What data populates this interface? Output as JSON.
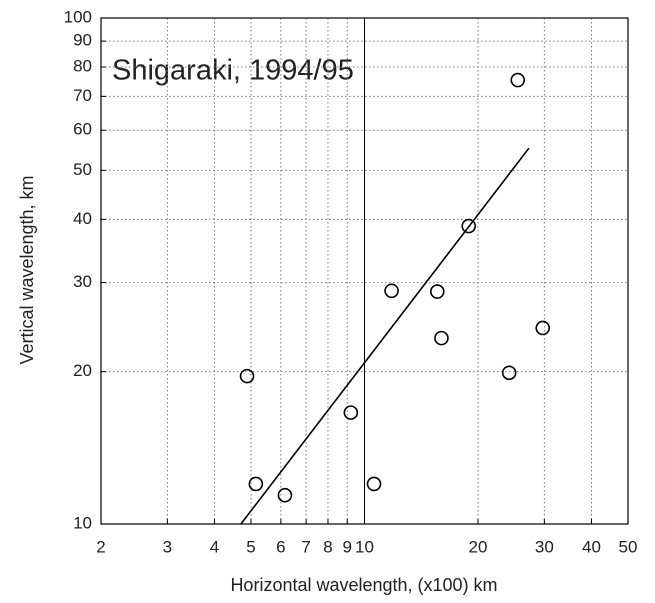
{
  "chart_data": {
    "type": "scatter",
    "title": "Shigaraki, 1994/95",
    "xlabel": "Horizontal wavelength, (x100) km",
    "ylabel": "Vertical wavelength, km",
    "x": [
      4.88,
      5.15,
      6.15,
      9.2,
      10.6,
      11.8,
      15.6,
      16.0,
      18.9,
      25.5,
      24.2,
      29.7
    ],
    "values": [
      19.6,
      12.0,
      11.4,
      16.6,
      12.0,
      28.9,
      28.8,
      23.3,
      38.8,
      75.4,
      19.9,
      24.4
    ],
    "fit_line": {
      "x": [
        4.7,
        27.3
      ],
      "y": [
        10,
        55.3
      ]
    },
    "xlim": [
      2,
      50
    ],
    "ylim": [
      10,
      100
    ],
    "xscale": "log",
    "yscale": "log",
    "xticks": [
      2,
      3,
      4,
      5,
      6,
      7,
      8,
      9,
      10,
      20,
      30,
      40,
      50
    ],
    "yticks": [
      10,
      20,
      30,
      40,
      50,
      60,
      70,
      80,
      90,
      100
    ],
    "reference_line_x": 10,
    "grid": true,
    "color": "#000000"
  }
}
